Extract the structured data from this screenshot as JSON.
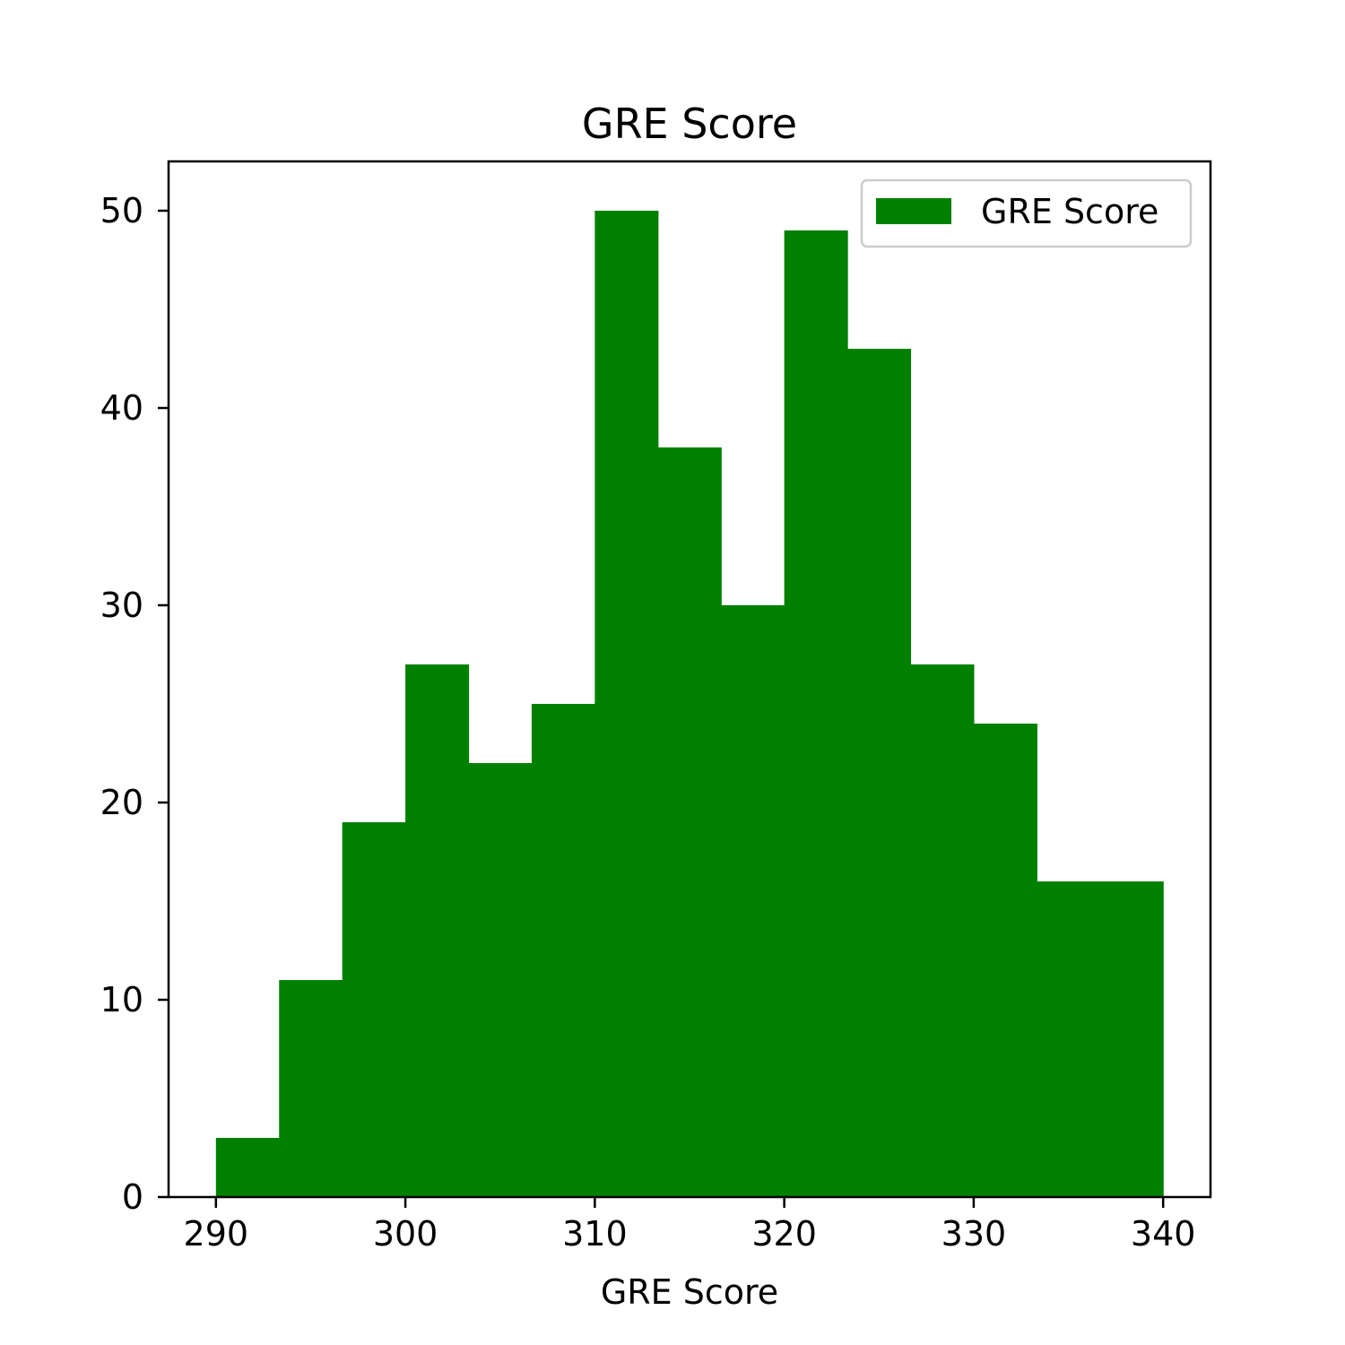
{
  "chart_data": {
    "type": "bar",
    "title": "GRE Score",
    "xlabel": "GRE Score",
    "ylabel": "",
    "bin_edges": [
      290,
      293.3333,
      296.6667,
      300,
      303.3333,
      306.6667,
      310,
      313.3333,
      316.6667,
      320,
      323.3333,
      326.6667,
      330,
      333.3333,
      336.6667,
      340
    ],
    "series": [
      {
        "name": "GRE Score",
        "values": [
          3,
          11,
          19,
          27,
          22,
          25,
          50,
          38,
          30,
          49,
          43,
          27,
          24,
          16,
          16
        ],
        "color": "#008000"
      }
    ],
    "xlim": [
      287.5,
      342.5
    ],
    "ylim": [
      0,
      52.5
    ],
    "xticks": [
      "290",
      "300",
      "310",
      "320",
      "330",
      "340"
    ],
    "yticks": [
      "0",
      "10",
      "20",
      "30",
      "40",
      "50"
    ],
    "grid": false,
    "legend_position": "top-right"
  }
}
